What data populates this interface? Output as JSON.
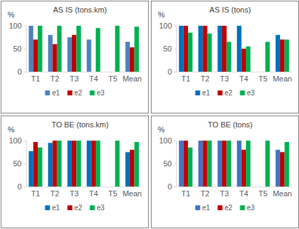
{
  "chart_data": [
    {
      "type": "bar",
      "title": "AS IS (tons.km)",
      "y_label": "%",
      "categories": [
        "T1",
        "T2",
        "T3",
        "T4",
        "T5",
        "Mean"
      ],
      "series": [
        {
          "name": "e1",
          "color": "#4f81bd",
          "values": [
            100,
            80,
            75,
            70,
            null,
            65
          ]
        },
        {
          "name": "e2",
          "color": "#c00000",
          "values": [
            70,
            60,
            80,
            null,
            null,
            53
          ]
        },
        {
          "name": "e3",
          "color": "#00b050",
          "values": [
            100,
            100,
            100,
            95,
            100,
            98
          ]
        }
      ],
      "ylim": [
        0,
        100
      ],
      "yticks": [
        0,
        50,
        100
      ],
      "legend": "bottom"
    },
    {
      "type": "bar",
      "title": "AS IS (tons)",
      "y_label": "%",
      "categories": [
        "T1",
        "T2",
        "T3",
        "T4",
        "T5",
        "Mean"
      ],
      "series": [
        {
          "name": "e1",
          "color": "#0070c0",
          "values": [
            100,
            100,
            100,
            100,
            null,
            80
          ]
        },
        {
          "name": "e2",
          "color": "#c00000",
          "values": [
            100,
            100,
            100,
            50,
            null,
            70
          ]
        },
        {
          "name": "e3",
          "color": "#00b050",
          "values": [
            85,
            83,
            65,
            55,
            65,
            70
          ]
        }
      ],
      "ylim": [
        0,
        100
      ],
      "yticks": [
        0,
        50,
        100
      ],
      "legend": "bottom"
    },
    {
      "type": "bar",
      "title": "TO BE (tons.km)",
      "y_label": "%",
      "categories": [
        "T1",
        "T2",
        "T3",
        "T4",
        "T5",
        "Mean"
      ],
      "series": [
        {
          "name": "e1",
          "color": "#0070c0",
          "values": [
            77,
            95,
            100,
            100,
            null,
            75
          ]
        },
        {
          "name": "e2",
          "color": "#c00000",
          "values": [
            97,
            100,
            100,
            100,
            null,
            80
          ]
        },
        {
          "name": "e3",
          "color": "#00b050",
          "values": [
            85,
            100,
            100,
            100,
            100,
            97
          ]
        }
      ],
      "ylim": [
        0,
        100
      ],
      "yticks": [
        0,
        50,
        100
      ],
      "legend": "bottom"
    },
    {
      "type": "bar",
      "title": "TO BE (tons)",
      "y_label": "%",
      "categories": [
        "T1",
        "T2",
        "T3",
        "T4",
        "T5",
        "Mean"
      ],
      "series": [
        {
          "name": "e1",
          "color": "#4472c4",
          "values": [
            100,
            100,
            100,
            100,
            null,
            80
          ]
        },
        {
          "name": "e2",
          "color": "#c00000",
          "values": [
            100,
            100,
            100,
            80,
            null,
            75
          ]
        },
        {
          "name": "e3",
          "color": "#00b050",
          "values": [
            85,
            100,
            100,
            100,
            100,
            97
          ]
        }
      ],
      "ylim": [
        0,
        100
      ],
      "yticks": [
        0,
        50,
        100
      ],
      "legend": "bottom"
    }
  ]
}
